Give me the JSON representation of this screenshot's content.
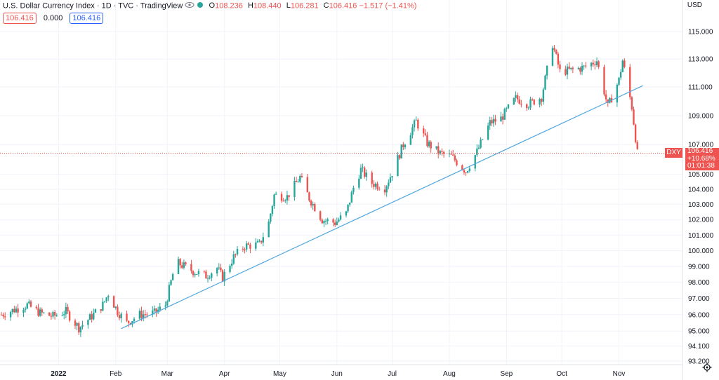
{
  "header": {
    "title": "U.S. Dollar Currency Index · 1D · TVC · TradingView",
    "open_label": "O",
    "open_value": "108.236",
    "high_label": "H",
    "high_value": "108.440",
    "low_label": "L",
    "low_value": "106.281",
    "close_label": "C",
    "close_value": "106.416",
    "change": "−1.517 (−1.41%)",
    "eye_icon": "eye-icon",
    "status_icon": "market-status-icon"
  },
  "badges": {
    "sell": "106.416",
    "spread": "0.000",
    "buy": "106.416"
  },
  "currency": "USD",
  "price_label": {
    "symbol": "DXY",
    "price": "106.416",
    "change": "+10.68%",
    "countdown": "01:01:38"
  },
  "colors": {
    "up": "#26a69a",
    "down": "#ef5350",
    "trendline": "#4fa7e0",
    "grid": "#f0f3fa"
  },
  "chart_data": {
    "type": "candlestick",
    "title": "U.S. Dollar Currency Index",
    "y_scale": "log",
    "ylim": [
      92.6,
      116.0
    ],
    "y_ticks": [
      "115.000",
      "113.000",
      "111.000",
      "109.000",
      "107.000",
      "105.000",
      "104.000",
      "103.000",
      "102.000",
      "101.000",
      "100.000",
      "99.000",
      "98.000",
      "97.000",
      "96.000",
      "95.000",
      "94.100",
      "93.200"
    ],
    "x_ticks": [
      "2022",
      "Feb",
      "Mar",
      "Apr",
      "May",
      "Jun",
      "Jul",
      "Aug",
      "Sep",
      "Oct",
      "Nov"
    ],
    "x_tick_dates": [
      "2022-01-01",
      "2022-02-01",
      "2022-03-01",
      "2022-04-01",
      "2022-05-01",
      "2022-06-01",
      "2022-07-01",
      "2022-08-01",
      "2022-09-01",
      "2022-10-01",
      "2022-11-01"
    ],
    "date_range": [
      "2021-12-01",
      "2022-11-21"
    ],
    "close_series": [
      [
        "2021-12-01",
        96.0
      ],
      [
        "2021-12-08",
        96.3
      ],
      [
        "2021-12-15",
        96.6
      ],
      [
        "2021-12-22",
        96.1
      ],
      [
        "2021-12-29",
        95.9
      ],
      [
        "2022-01-05",
        96.2
      ],
      [
        "2022-01-12",
        95.2
      ],
      [
        "2022-01-18",
        95.8
      ],
      [
        "2022-01-25",
        96.6
      ],
      [
        "2022-01-28",
        97.3
      ],
      [
        "2022-02-02",
        96.2
      ],
      [
        "2022-02-07",
        95.5
      ],
      [
        "2022-02-14",
        96.0
      ],
      [
        "2022-02-22",
        96.1
      ],
      [
        "2022-02-28",
        96.6
      ],
      [
        "2022-03-04",
        98.5
      ],
      [
        "2022-03-07",
        99.2
      ],
      [
        "2022-03-15",
        98.7
      ],
      [
        "2022-03-22",
        98.4
      ],
      [
        "2022-03-28",
        98.9
      ],
      [
        "2022-03-31",
        98.3
      ],
      [
        "2022-04-06",
        99.6
      ],
      [
        "2022-04-12",
        100.3
      ],
      [
        "2022-04-20",
        100.4
      ],
      [
        "2022-04-25",
        101.8
      ],
      [
        "2022-04-28",
        103.6
      ],
      [
        "2022-05-05",
        103.5
      ],
      [
        "2022-05-12",
        104.8
      ],
      [
        "2022-05-17",
        103.4
      ],
      [
        "2022-05-24",
        102.0
      ],
      [
        "2022-05-31",
        101.8
      ],
      [
        "2022-06-06",
        102.4
      ],
      [
        "2022-06-10",
        104.1
      ],
      [
        "2022-06-14",
        105.3
      ],
      [
        "2022-06-20",
        104.4
      ],
      [
        "2022-06-27",
        104.1
      ],
      [
        "2022-07-01",
        105.1
      ],
      [
        "2022-07-07",
        107.0
      ],
      [
        "2022-07-14",
        108.6
      ],
      [
        "2022-07-20",
        107.1
      ],
      [
        "2022-07-27",
        106.4
      ],
      [
        "2022-08-02",
        106.2
      ],
      [
        "2022-08-10",
        105.2
      ],
      [
        "2022-08-16",
        106.5
      ],
      [
        "2022-08-23",
        108.5
      ],
      [
        "2022-08-29",
        108.8
      ],
      [
        "2022-09-06",
        110.2
      ],
      [
        "2022-09-13",
        109.8
      ],
      [
        "2022-09-20",
        110.3
      ],
      [
        "2022-09-26",
        114.1
      ],
      [
        "2022-09-30",
        112.1
      ],
      [
        "2022-10-06",
        112.2
      ],
      [
        "2022-10-13",
        112.4
      ],
      [
        "2022-10-20",
        112.9
      ],
      [
        "2022-10-26",
        109.6
      ],
      [
        "2022-11-01",
        111.5
      ],
      [
        "2022-11-03",
        112.9
      ],
      [
        "2022-11-08",
        109.6
      ],
      [
        "2022-11-11",
        106.4
      ]
    ],
    "trendline": {
      "start": [
        "2022-02-04",
        95.15
      ],
      "end": [
        "2022-11-14",
        111.1
      ]
    },
    "last_price": 106.416
  }
}
